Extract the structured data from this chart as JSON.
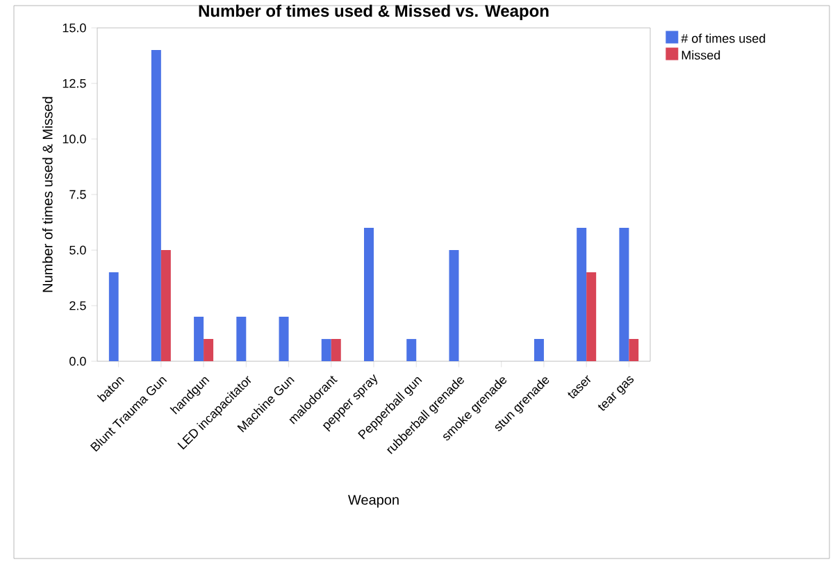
{
  "chart_data": {
    "type": "bar",
    "title": "Number of times used & Missed vs. Weapon",
    "xlabel": "Weapon",
    "ylabel": "Number of times used & Missed",
    "categories": [
      "baton",
      "Blunt Trauma Gun",
      "handgun",
      "LED incapacitator",
      "Machine Gun",
      "malodorant",
      "pepper spray",
      "Pepperball gun",
      "rubberball grenade",
      "smoke grenade",
      "stun grenade",
      "taser",
      "tear gas"
    ],
    "series": [
      {
        "name": "# of times used",
        "color": "#4a72e6",
        "values": [
          4,
          14,
          2,
          2,
          2,
          1,
          6,
          1,
          5,
          0,
          1,
          6,
          6
        ]
      },
      {
        "name": "Missed",
        "color": "#d84456",
        "values": [
          0,
          5,
          1,
          0,
          0,
          1,
          0,
          0,
          0,
          0,
          0,
          4,
          1
        ]
      }
    ],
    "ylim": [
      0,
      15
    ],
    "yticks": [
      {
        "value": 0,
        "label": "0.0"
      },
      2.5,
      {
        "value": 5,
        "label": "5.0"
      },
      7.5,
      {
        "value": 10,
        "label": "10.0"
      },
      12.5,
      {
        "value": 15,
        "label": "15.0"
      }
    ],
    "legend": "top right",
    "grid": false
  }
}
